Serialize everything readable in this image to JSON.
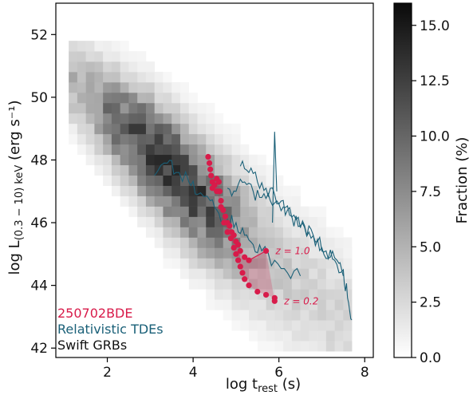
{
  "chart_data": {
    "type": "heatmap",
    "xlabel_main": "log t",
    "xlabel_sub": "rest",
    "xlabel_unit": " (s)",
    "ylabel_main": "log L",
    "ylabel_sub": "(0.3 − 10) keV",
    "ylabel_unit": " (erg s⁻¹)",
    "xlim": [
      0.8,
      8.2
    ],
    "ylim": [
      41.7,
      53.0
    ],
    "x_ticks": [
      2,
      4,
      6,
      8
    ],
    "y_ticks": [
      42,
      44,
      46,
      48,
      50,
      52
    ],
    "colorbar": {
      "label": "Fraction (%)",
      "range": [
        0,
        16
      ],
      "ticks": [
        "0.0",
        "2.5",
        "5.0",
        "7.5",
        "10.0",
        "12.5",
        "15.0"
      ],
      "tick_values": [
        0,
        2.5,
        5,
        7.5,
        10,
        12.5,
        15
      ]
    },
    "legend": [
      {
        "label": "250702BDE",
        "color": "#d81b4a"
      },
      {
        "label": "Relativistic TDEs",
        "color": "#1a6078"
      },
      {
        "label": "Swift GRBs",
        "color": "#111111"
      }
    ],
    "series": [
      {
        "name": "Swift GRBs",
        "kind": "density",
        "ridge": [
          [
            1.2,
            50.5
          ],
          [
            2.0,
            49.5
          ],
          [
            3.0,
            48.3
          ],
          [
            4.0,
            47.0
          ],
          [
            5.0,
            45.8
          ],
          [
            6.0,
            44.6
          ],
          [
            7.0,
            43.4
          ]
        ]
      },
      {
        "name": "Relativistic TDEs",
        "kind": "lines",
        "color": "#1a6078",
        "lines": [
          [
            [
              3.1,
              47.5
            ],
            [
              3.4,
              47.9
            ],
            [
              3.6,
              47.6
            ],
            [
              3.9,
              47.3
            ],
            [
              4.1,
              46.9
            ],
            [
              4.4,
              46.7
            ],
            [
              4.6,
              46.3
            ],
            [
              4.8,
              46.1
            ],
            [
              5.0,
              46.0
            ],
            [
              5.2,
              45.6
            ],
            [
              5.4,
              45.3
            ],
            [
              5.6,
              45.1
            ],
            [
              5.9,
              44.8
            ],
            [
              6.2,
              44.4
            ],
            [
              6.5,
              44.3
            ]
          ],
          [
            [
              4.8,
              47.1
            ],
            [
              5.0,
              47.0
            ],
            [
              5.2,
              47.3
            ],
            [
              5.4,
              47.0
            ],
            [
              5.6,
              46.8
            ],
            [
              5.8,
              46.7
            ],
            [
              6.0,
              46.6
            ],
            [
              6.2,
              46.4
            ],
            [
              6.4,
              46.1
            ],
            [
              6.6,
              45.9
            ],
            [
              6.8,
              45.6
            ],
            [
              7.0,
              45.2
            ],
            [
              7.2,
              44.9
            ],
            [
              7.4,
              44.7
            ],
            [
              7.5,
              44.3
            ]
          ],
          [
            [
              5.1,
              47.8
            ],
            [
              5.3,
              47.6
            ],
            [
              5.5,
              47.3
            ],
            [
              5.7,
              47.1
            ],
            [
              5.9,
              46.9
            ],
            [
              6.1,
              46.5
            ],
            [
              6.3,
              46.2
            ],
            [
              6.5,
              45.9
            ],
            [
              6.7,
              45.7
            ],
            [
              6.9,
              45.4
            ],
            [
              7.1,
              45.1
            ],
            [
              7.3,
              44.8
            ],
            [
              7.5,
              44.5
            ],
            [
              7.6,
              43.6
            ],
            [
              7.7,
              42.9
            ]
          ]
        ],
        "spike": [
          [
            5.85,
            46.0
          ],
          [
            5.9,
            48.9
          ],
          [
            5.95,
            47.0
          ]
        ]
      },
      {
        "name": "250702BDE",
        "kind": "markers",
        "color": "#d81b4a",
        "cluster_a": [
          [
            4.35,
            48.1
          ],
          [
            4.38,
            47.9
          ],
          [
            4.4,
            47.7
          ],
          [
            4.42,
            47.5
          ],
          [
            4.45,
            47.3
          ],
          [
            4.5,
            47.2
          ],
          [
            4.55,
            47.4
          ],
          [
            4.6,
            47.3
          ],
          [
            4.62,
            47.0
          ],
          [
            4.65,
            46.7
          ],
          [
            4.7,
            46.4
          ],
          [
            4.75,
            46.2
          ],
          [
            4.8,
            46.0
          ],
          [
            4.85,
            45.9
          ],
          [
            4.9,
            45.7
          ],
          [
            4.95,
            45.6
          ],
          [
            5.0,
            45.4
          ],
          [
            5.05,
            45.3
          ],
          [
            5.1,
            45.1
          ],
          [
            5.2,
            44.9
          ],
          [
            5.3,
            44.8
          ]
        ],
        "cluster_b": [
          [
            4.45,
            47.1
          ],
          [
            4.55,
            47.0
          ],
          [
            4.65,
            46.5
          ],
          [
            4.72,
            46.0
          ],
          [
            4.8,
            45.7
          ],
          [
            4.88,
            45.5
          ],
          [
            4.95,
            45.2
          ],
          [
            5.0,
            45.0
          ],
          [
            5.05,
            44.8
          ],
          [
            5.1,
            44.6
          ],
          [
            5.15,
            44.4
          ],
          [
            5.2,
            44.2
          ],
          [
            5.3,
            44.0
          ],
          [
            5.5,
            43.8
          ],
          [
            5.7,
            43.7
          ],
          [
            5.9,
            43.6
          ]
        ],
        "z_high": {
          "label": "z = 1.0",
          "x": 5.7,
          "y": 45.1
        },
        "z_low": {
          "label": "z = 0.2",
          "x": 5.9,
          "y": 43.5
        }
      }
    ]
  }
}
